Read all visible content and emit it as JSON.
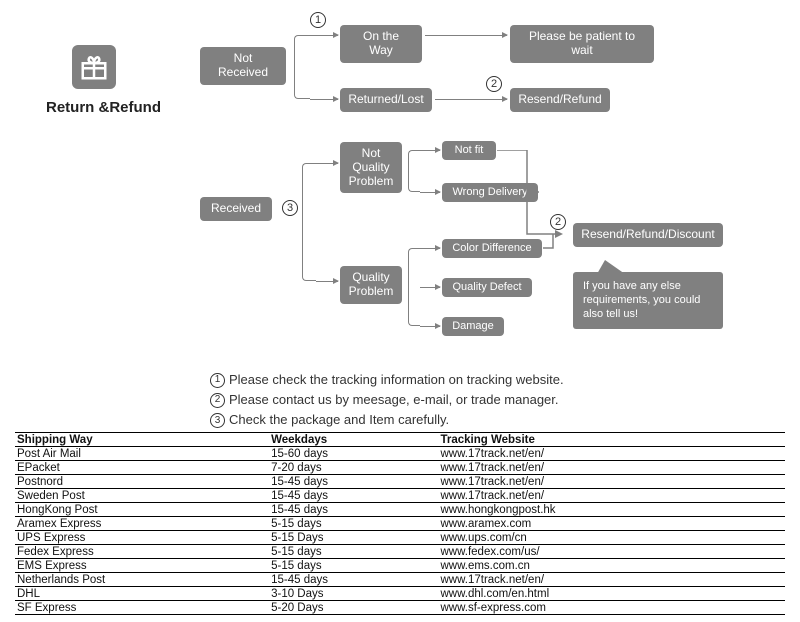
{
  "title": "Return &Refund",
  "colors": {
    "node_bg": "#808080",
    "node_text": "#ffffff",
    "line": "#808080",
    "text": "#333333",
    "bg": "#ffffff"
  },
  "flow": {
    "level1": {
      "not_received": "Not Received",
      "received": "Received"
    },
    "not_received_branch": {
      "on_the_way": "On the Way",
      "returned_lost": "Returned/Lost",
      "patient": "Please be patient to wait",
      "resend_refund": "Resend/Refund"
    },
    "received_branch": {
      "not_quality_problem": "Not\nQuality\nProblem",
      "quality_problem": "Quality\nProblem",
      "not_fit": "Not fit",
      "wrong_delivery": "Wrong Delivery",
      "color_diff": "Color Difference",
      "quality_defect": "Quality Defect",
      "damage": "Damage",
      "resend_discount": "Resend/Refund/Discount"
    },
    "speech": "If you have any else requirements, you could also tell us!",
    "markers": {
      "m1": "1",
      "m2": "2",
      "m3": "3"
    }
  },
  "notes": {
    "n1": "Please check the tracking information on tracking website.",
    "n2": "Please contact us by meesage, e-mail, or trade manager.",
    "n3": "Check the package and Item carefully."
  },
  "shipping": {
    "columns": [
      "Shipping Way",
      "Weekdays",
      "Tracking Website"
    ],
    "rows": [
      [
        "Post Air Mail",
        "15-60 days",
        "www.17track.net/en/"
      ],
      [
        "EPacket",
        "7-20 days",
        "www.17track.net/en/"
      ],
      [
        "Postnord",
        "15-45 days",
        "www.17track.net/en/"
      ],
      [
        "Sweden Post",
        "15-45 days",
        "www.17track.net/en/"
      ],
      [
        "HongKong Post",
        "15-45 days",
        "www.hongkongpost.hk"
      ],
      [
        "Aramex Express",
        "5-15 days",
        "www.aramex.com"
      ],
      [
        "UPS Express",
        "5-15 Days",
        "www.ups.com/cn"
      ],
      [
        "Fedex Express",
        "5-15 days",
        "www.fedex.com/us/"
      ],
      [
        "EMS Express",
        "5-15 days",
        "www.ems.com.cn"
      ],
      [
        "Netherlands Post",
        "15-45 days",
        "www.17track.net/en/"
      ],
      [
        "DHL",
        "3-10 Days",
        "www.dhl.com/en.html"
      ],
      [
        "SF Express",
        "5-20 Days",
        "www.sf-express.com"
      ]
    ]
  }
}
